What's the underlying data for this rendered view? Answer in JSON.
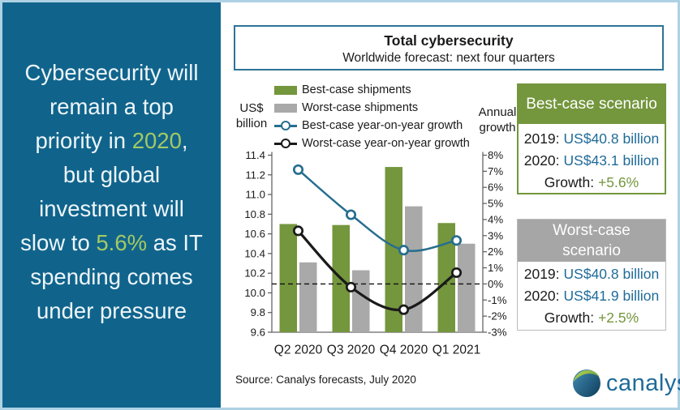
{
  "colors": {
    "panel_teal": "#10648c",
    "highlight_green": "#a3c964",
    "bar_green": "#74963d",
    "bar_gray": "#a9a9a9",
    "line_blue": "#266e8f",
    "line_black": "#1a1a1a",
    "value_blue": "#1f6b99",
    "growth_green": "#74963d",
    "title_box_border": "#2e7396",
    "outer_border": "#aed2e4",
    "logo_blue": "#1d6b99"
  },
  "left_panel": {
    "segments": [
      {
        "text": "Cybersecurity will\nremain a top\npriority in ",
        "highlight": false
      },
      {
        "text": "2020",
        "highlight": true
      },
      {
        "text": ",\nbut global\ninvestment will\nslow to ",
        "highlight": false
      },
      {
        "text": "5.6%",
        "highlight": true
      },
      {
        "text": " as IT\nspending comes\nunder pressure",
        "highlight": false
      }
    ]
  },
  "header": {
    "title": "Total cybersecurity",
    "subtitle": "Worldwide forecast: next four quarters"
  },
  "axes": {
    "left_label": "US$ billion",
    "right_label": "Annual growth"
  },
  "chart_data": {
    "type": "combo-bar-line",
    "categories": [
      "Q2 2020",
      "Q3 2020",
      "Q4 2020",
      "Q1 2021"
    ],
    "series": [
      {
        "name": "Best-case shipments",
        "kind": "bar",
        "axis": "left",
        "color": "#74963d",
        "values": [
          10.7,
          10.69,
          11.28,
          10.71
        ]
      },
      {
        "name": "Worst-case shipments",
        "kind": "bar",
        "axis": "left",
        "color": "#a9a9a9",
        "values": [
          10.31,
          10.23,
          10.88,
          10.5
        ]
      },
      {
        "name": "Best-case year-on-year growth",
        "kind": "line",
        "axis": "right",
        "color": "#266e8f",
        "values": [
          7.1,
          4.3,
          2.1,
          2.7
        ]
      },
      {
        "name": "Worst-case year-on-year growth",
        "kind": "line",
        "axis": "right",
        "color": "#1a1a1a",
        "values": [
          3.3,
          -0.2,
          -1.6,
          0.7
        ]
      }
    ],
    "left_axis": {
      "label": "US$ billion",
      "min": 9.6,
      "max": 11.4,
      "step": 0.2
    },
    "right_axis": {
      "label": "Annual growth",
      "min": -3,
      "max": 8,
      "step": 1,
      "suffix": "%"
    },
    "zero_line": {
      "axis": "right",
      "value": 0,
      "style": "dashed"
    },
    "legend_position": "top-left",
    "grid": false
  },
  "scenario_boxes": [
    {
      "title": "Best-case scenario",
      "rows": [
        {
          "label": "2019:",
          "value": "US$40.8 billion",
          "tone": "blue"
        },
        {
          "label": "2020:",
          "value": "US$43.1 billion",
          "tone": "blue"
        },
        {
          "label": "Growth:",
          "value": "+5.6%",
          "tone": "green"
        }
      ]
    },
    {
      "title": "Worst-case scenario",
      "rows": [
        {
          "label": "2019:",
          "value": "US$40.8 billion",
          "tone": "blue"
        },
        {
          "label": "2020:",
          "value": "US$41.9 billion",
          "tone": "blue"
        },
        {
          "label": "Growth:",
          "value": "+2.5%",
          "tone": "green"
        }
      ]
    }
  ],
  "footer": {
    "source": "Source: Canalys forecasts, July 2020",
    "brand": "canalys"
  }
}
